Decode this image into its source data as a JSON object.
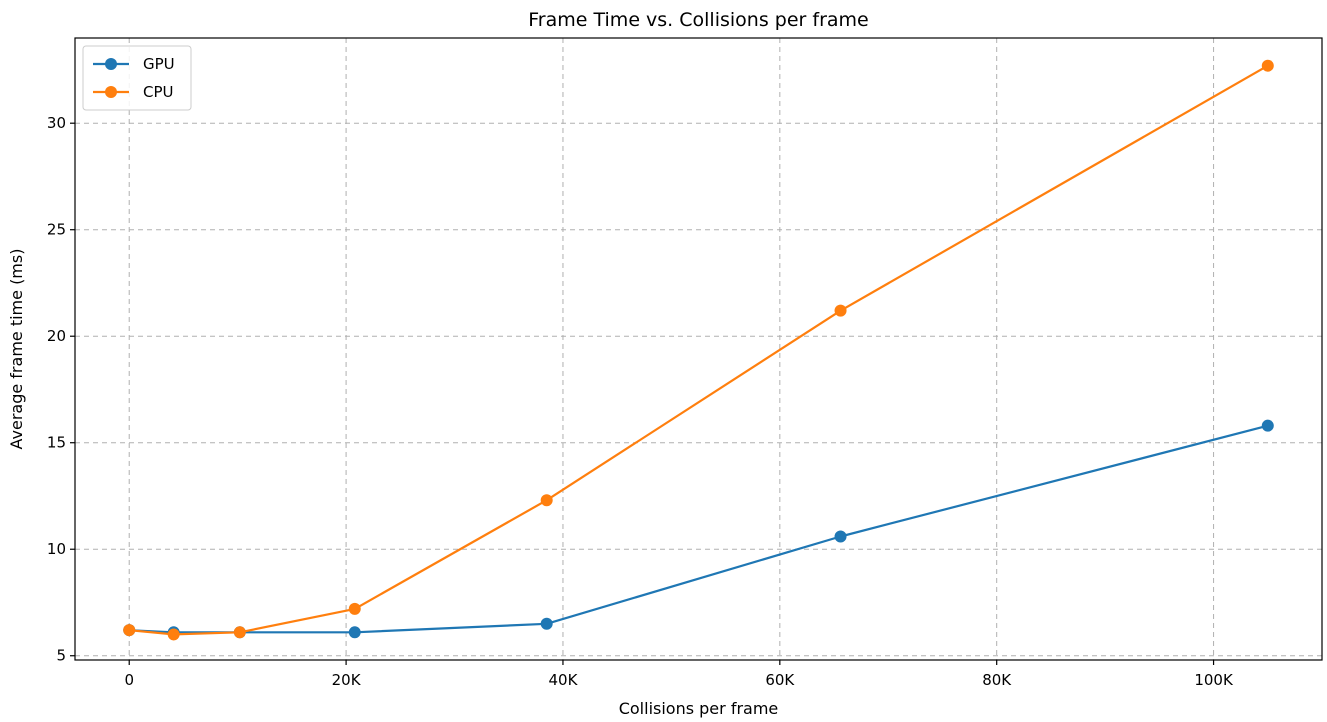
{
  "chart_data": {
    "type": "line",
    "title": "Frame Time vs. Collisions per frame",
    "xlabel": "Collisions per frame",
    "ylabel": "Average frame time (ms)",
    "xlim": [
      -5000,
      110000
    ],
    "ylim": [
      4.8,
      34.0
    ],
    "xticks": [
      0,
      20000,
      40000,
      60000,
      80000,
      100000
    ],
    "xtick_labels": [
      "0",
      "20K",
      "40K",
      "60K",
      "80K",
      "100K"
    ],
    "yticks": [
      5,
      10,
      15,
      20,
      25,
      30
    ],
    "ytick_labels": [
      "5",
      "10",
      "15",
      "20",
      "25",
      "30"
    ],
    "grid": true,
    "legend_position": "top-left",
    "series": [
      {
        "name": "GPU",
        "color": "#1f77b4",
        "marker": "circle",
        "x": [
          0,
          4100,
          10200,
          20800,
          38500,
          65600,
          105000
        ],
        "y": [
          6.2,
          6.1,
          6.1,
          6.1,
          6.5,
          10.6,
          15.8
        ]
      },
      {
        "name": "CPU",
        "color": "#ff7f0e",
        "marker": "circle",
        "x": [
          0,
          4100,
          10200,
          20800,
          38500,
          65600,
          105000
        ],
        "y": [
          6.2,
          6.0,
          6.1,
          7.2,
          12.3,
          21.2,
          32.7
        ]
      }
    ]
  }
}
